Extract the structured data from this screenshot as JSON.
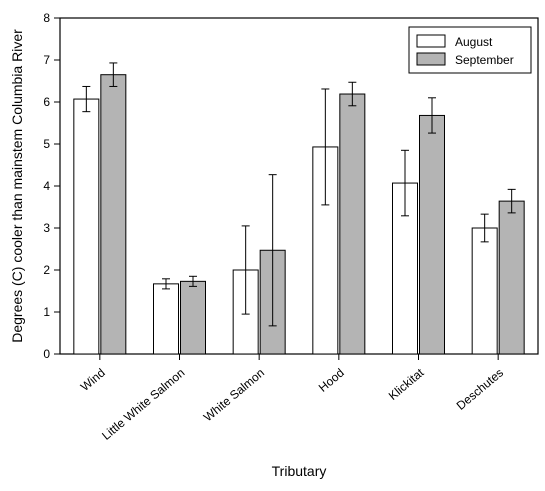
{
  "chart_data": {
    "type": "bar",
    "categories": [
      "Wind",
      "Little White Salmon",
      "White Salmon",
      "Hood",
      "Klickitat",
      "Deschutes"
    ],
    "series": [
      {
        "name": "August",
        "color": "#ffffff",
        "values": [
          6.07,
          1.67,
          2.0,
          4.93,
          4.07,
          3.0
        ],
        "error": [
          0.3,
          0.12,
          1.05,
          1.38,
          0.78,
          0.33
        ]
      },
      {
        "name": "September",
        "color": "#b4b4b4",
        "values": [
          6.65,
          1.73,
          2.47,
          6.19,
          5.68,
          3.64
        ],
        "error": [
          0.28,
          0.12,
          1.8,
          0.28,
          0.42,
          0.28
        ]
      }
    ],
    "xlabel": "Tributary",
    "ylabel": "Degrees (C) cooler than mainstem Columbia River",
    "ylim": [
      0,
      8
    ],
    "yticks": [
      0,
      1,
      2,
      3,
      4,
      5,
      6,
      7,
      8
    ],
    "grid": false,
    "legend_position": "top-right"
  }
}
